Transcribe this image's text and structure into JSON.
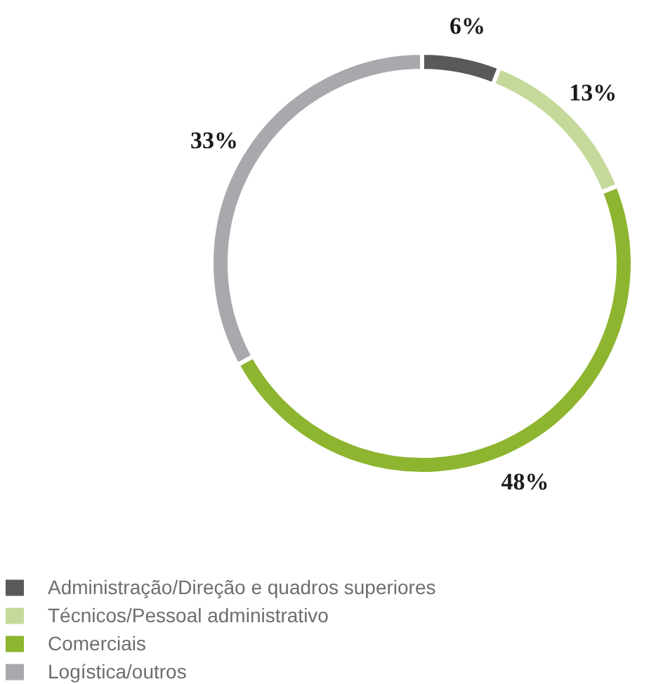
{
  "chart_data": {
    "type": "donut",
    "categories": [
      "Administração/Direção e quadros superiores",
      "Técnicos/Pessoal administrativo",
      "Comerciais",
      "Logística/outros"
    ],
    "values": [
      6,
      13,
      48,
      33
    ],
    "colors": [
      "#58595b",
      "#c5d99b",
      "#8db52f",
      "#a8a9ad"
    ],
    "value_labels": [
      "6%",
      "13%",
      "48%",
      "33%"
    ],
    "legend": "bottom"
  }
}
